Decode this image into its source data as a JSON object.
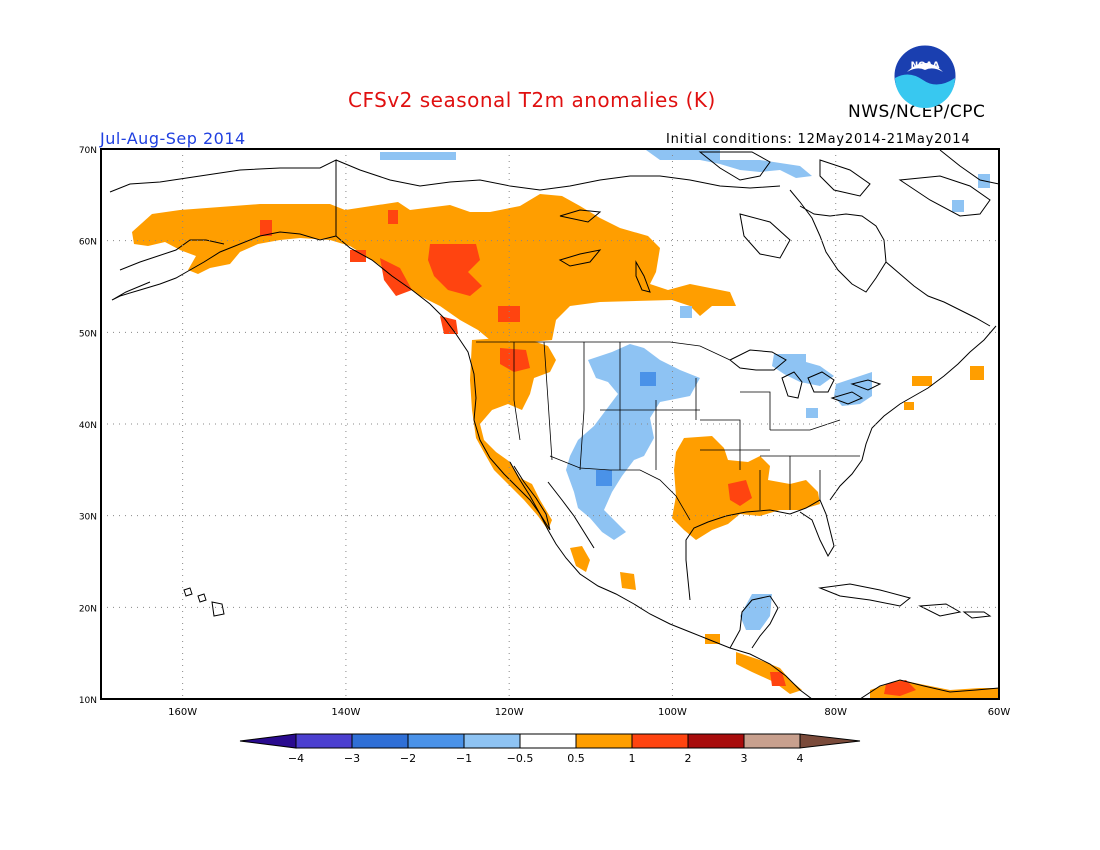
{
  "header": {
    "title": "CFSv2 seasonal T2m anomalies (K)",
    "organization": "NWS/NCEP/CPC",
    "period": "Jul-Aug-Sep 2014",
    "initial_conditions": "Initial conditions: 12May2014-21May2014",
    "logo_text": "NOAA"
  },
  "map": {
    "lon_range": [
      -170,
      -60
    ],
    "lat_range": [
      10,
      70
    ],
    "lon_ticks": [
      "160W",
      "140W",
      "120W",
      "100W",
      "80W",
      "60W"
    ],
    "lat_ticks": [
      "70N",
      "60N",
      "50N",
      "40N",
      "30N",
      "20N",
      "10N"
    ],
    "grid": "dotted"
  },
  "colorbar": {
    "tick_labels": [
      "-4",
      "-3",
      "-2",
      "-1",
      "-0.5",
      "0.5",
      "1",
      "2",
      "3",
      "4"
    ],
    "colors": [
      "#2a0b8f",
      "#4b3fcf",
      "#2f6fd6",
      "#4a92e8",
      "#8ec3f3",
      "#ffffff",
      "#ff9e00",
      "#ff4410",
      "#a80c0c",
      "#c8a08e",
      "#7a4a3a"
    ]
  },
  "anomaly_regions": [
    {
      "label": "Alaska and NW Canada warm",
      "level": 1
    },
    {
      "label": "Pacific NW coast warm",
      "level": 2
    },
    {
      "label": "Interior Plains cool",
      "level": -1
    },
    {
      "label": "Southern Plains warm",
      "level": 1
    },
    {
      "label": "Lower Mississippi warm",
      "level": 2
    },
    {
      "label": "Southwest / Mexico cool",
      "level": -1
    },
    {
      "label": "Great Lakes cool",
      "level": -1
    },
    {
      "label": "Hudson Bay north cool",
      "level": -1
    },
    {
      "label": "Caribbean / N South America warm",
      "level": 2
    }
  ]
}
